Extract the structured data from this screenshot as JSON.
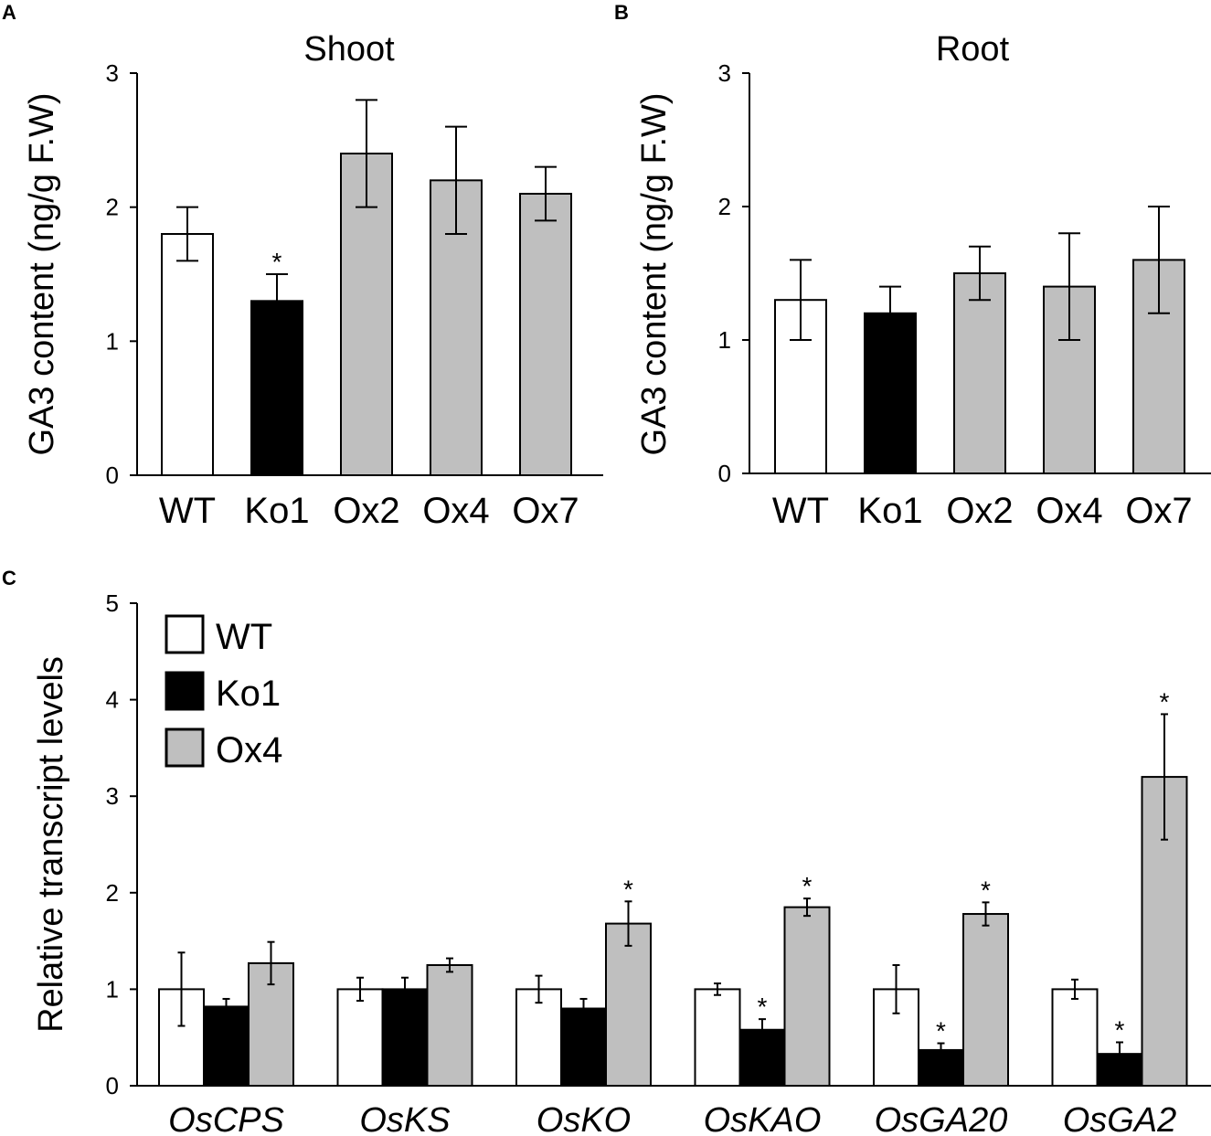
{
  "panels": {
    "a": "A",
    "b": "B",
    "c": "C"
  },
  "colors": {
    "wt": "#ffffff",
    "ko": "#000000",
    "ox": "#bfbfbf",
    "stroke": "#000000"
  },
  "chart_data": [
    {
      "id": "A",
      "type": "bar",
      "title": "Shoot",
      "xlabel": "",
      "ylabel": "GA3 content (ng/g F.W)",
      "ylim": [
        0,
        3
      ],
      "yticks": [
        "0",
        "1",
        "2",
        "3"
      ],
      "categories": [
        "WT",
        "Ko1",
        "Ox2",
        "Ox4",
        "Ox7"
      ],
      "values": [
        1.8,
        1.3,
        2.4,
        2.2,
        2.1
      ],
      "errors": [
        0.2,
        0.2,
        0.4,
        0.4,
        0.2
      ],
      "fills": [
        "wt",
        "ko",
        "ox",
        "ox",
        "ox"
      ],
      "significance": [
        "",
        "*",
        "",
        "",
        ""
      ]
    },
    {
      "id": "B",
      "type": "bar",
      "title": "Root",
      "xlabel": "",
      "ylabel": "GA3 content (ng/g F.W)",
      "ylim": [
        0,
        3
      ],
      "yticks": [
        "0",
        "1",
        "2",
        "3"
      ],
      "categories": [
        "WT",
        "Ko1",
        "Ox2",
        "Ox4",
        "Ox7"
      ],
      "values": [
        1.3,
        1.2,
        1.5,
        1.4,
        1.6
      ],
      "errors": [
        0.3,
        0.2,
        0.2,
        0.4,
        0.4
      ],
      "fills": [
        "wt",
        "ko",
        "ox",
        "ox",
        "ox"
      ],
      "significance": [
        "",
        "",
        "",
        "",
        ""
      ]
    },
    {
      "id": "C",
      "type": "bar",
      "title": "",
      "xlabel": "",
      "ylabel": "Relative transcript levels",
      "ylim": [
        0,
        5
      ],
      "yticks": [
        "0",
        "1",
        "2",
        "3",
        "4",
        "5"
      ],
      "categories": [
        "OsCPS",
        "OsKS",
        "OsKO",
        "OsKAO",
        "OsGA20",
        "OsGA2"
      ],
      "legend": [
        "WT",
        "Ko1",
        "Ox4"
      ],
      "legend_position": "top-left",
      "series": [
        {
          "name": "WT",
          "fill": "wt",
          "values": [
            1.0,
            1.0,
            1.0,
            1.0,
            1.0,
            1.0
          ],
          "errors": [
            0.38,
            0.12,
            0.14,
            0.06,
            0.25,
            0.1
          ],
          "significance": [
            "",
            "",
            "",
            "",
            "",
            ""
          ]
        },
        {
          "name": "Ko1",
          "fill": "ko",
          "values": [
            0.82,
            1.0,
            0.8,
            0.58,
            0.37,
            0.33
          ],
          "errors": [
            0.08,
            0.12,
            0.1,
            0.11,
            0.07,
            0.12
          ],
          "significance": [
            "",
            "",
            "",
            "*",
            "*",
            "*"
          ]
        },
        {
          "name": "Ox4",
          "fill": "ox",
          "values": [
            1.27,
            1.25,
            1.68,
            1.85,
            1.78,
            3.2
          ],
          "errors": [
            0.22,
            0.07,
            0.23,
            0.09,
            0.12,
            0.65
          ],
          "significance": [
            "",
            "",
            "*",
            "*",
            "*",
            "*"
          ]
        }
      ]
    }
  ]
}
